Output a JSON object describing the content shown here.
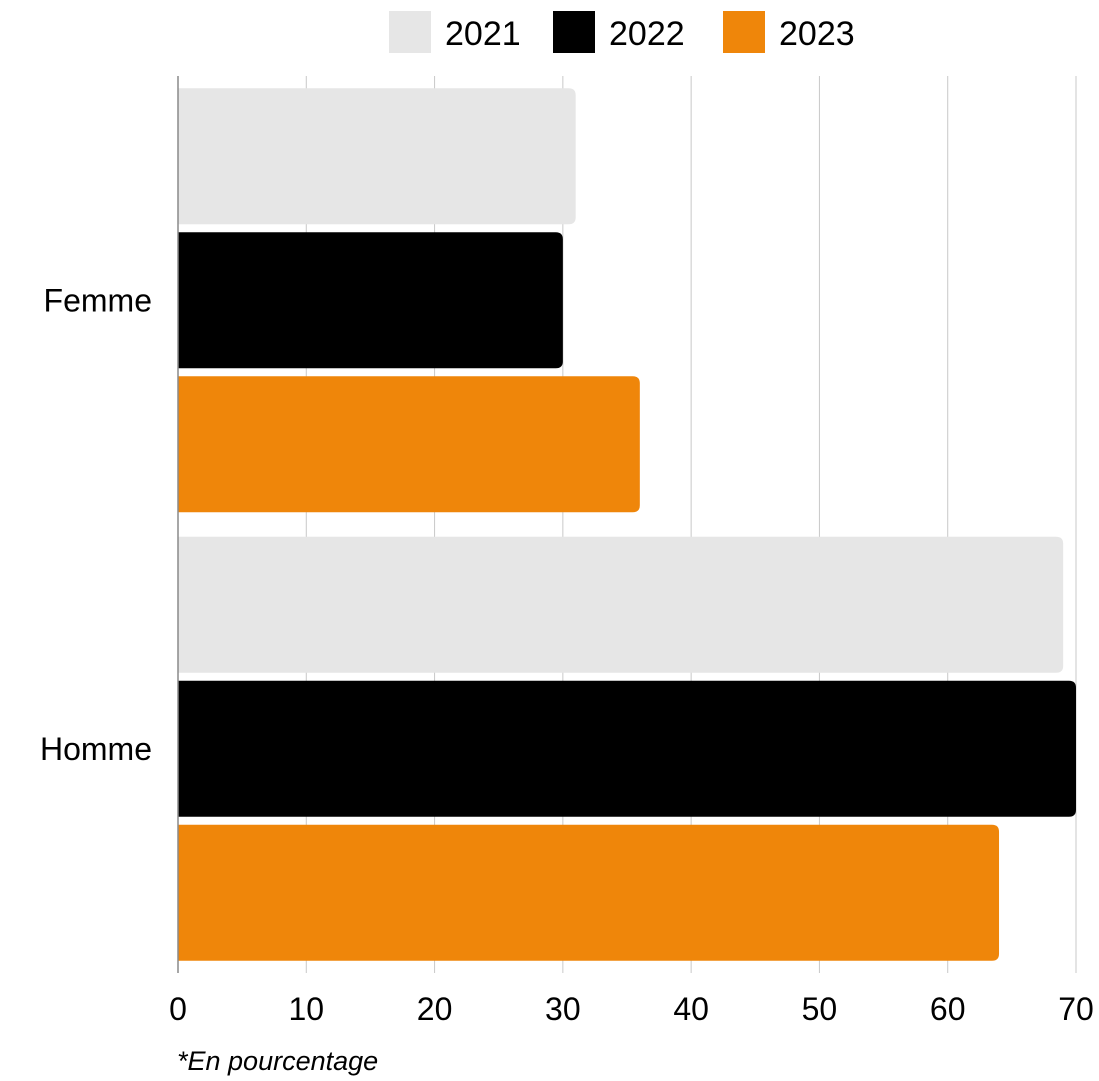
{
  "chart_data": {
    "type": "bar",
    "orientation": "horizontal",
    "categories": [
      "Femme",
      "Homme"
    ],
    "series": [
      {
        "name": "2021",
        "values": [
          31,
          69
        ],
        "color": "#e6e6e6"
      },
      {
        "name": "2022",
        "values": [
          30,
          70
        ],
        "color": "#000000"
      },
      {
        "name": "2023",
        "values": [
          36,
          64
        ],
        "color": "#ef860a"
      }
    ],
    "xlim": [
      0,
      70
    ],
    "xticks": [
      0,
      10,
      20,
      30,
      40,
      50,
      60,
      70
    ],
    "grid": true,
    "legend": "top-center",
    "note": "*En pourcentage"
  }
}
